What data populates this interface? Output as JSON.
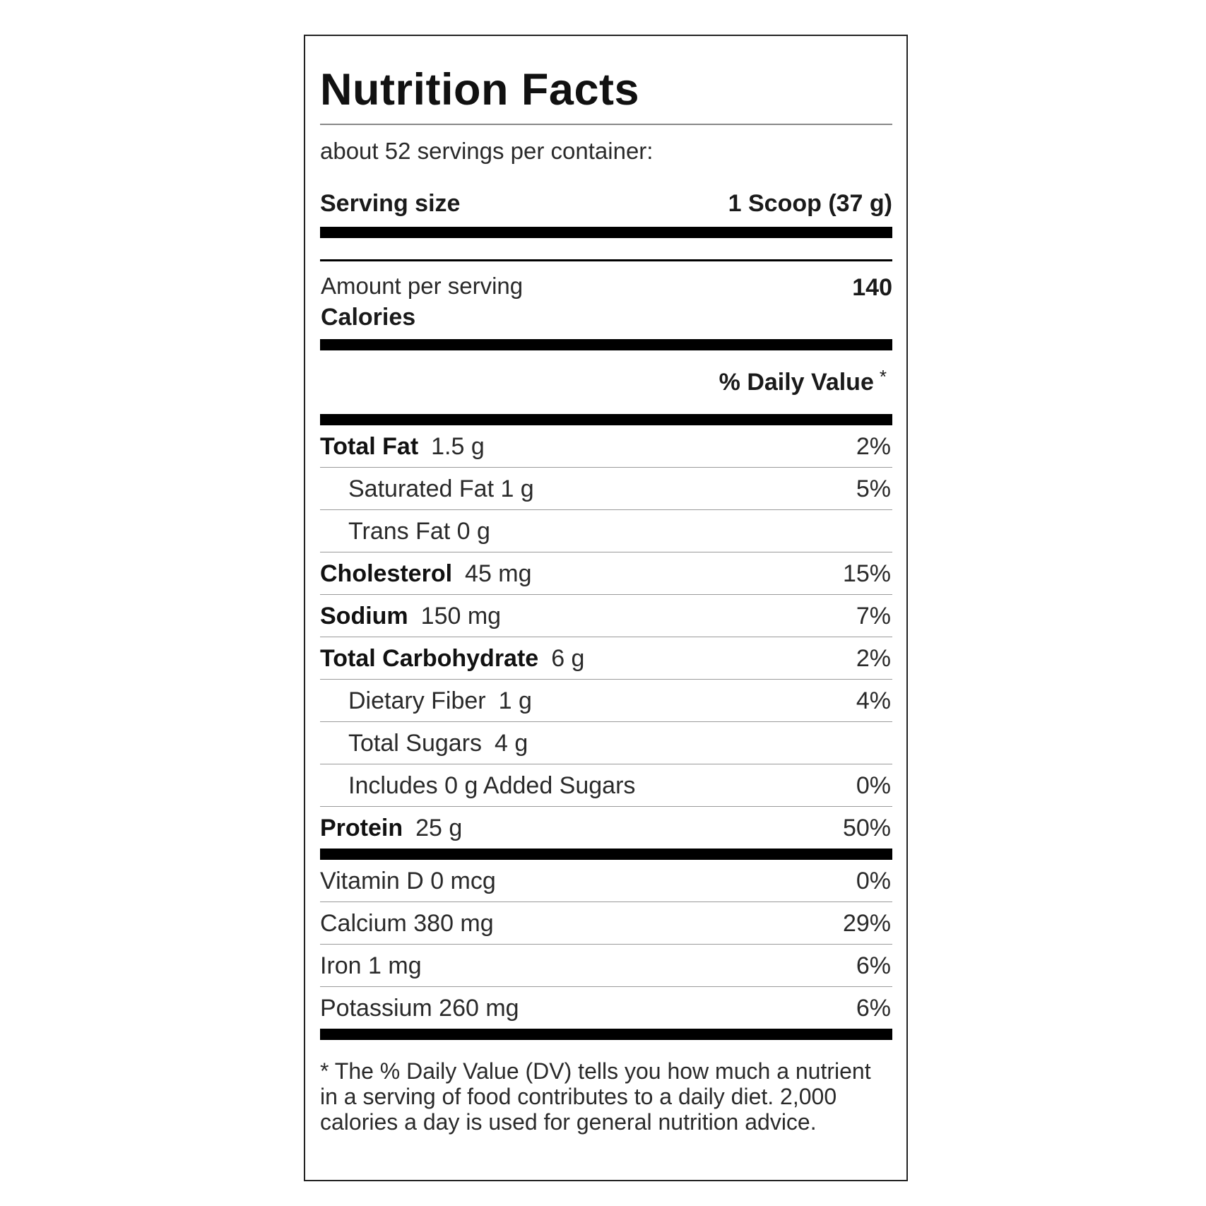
{
  "label": {
    "title": "Nutrition Facts",
    "servings_per_container": "about 52 servings per container:",
    "serving_size_label": "Serving size",
    "serving_size_value": "1 Scoop (37 g)",
    "amount_per_serving": "Amount per serving",
    "calories_label": "Calories",
    "calories_value": "140",
    "daily_value_header": "% Daily Value",
    "daily_value_star": "*",
    "nutrients": [
      {
        "name": "Total Fat",
        "amount": "1.5 g",
        "dv": "2%"
      },
      {
        "name": "Saturated Fat 1 g",
        "amount": "",
        "dv": "5%"
      },
      {
        "name": "Trans Fat 0 g",
        "amount": "",
        "dv": ""
      },
      {
        "name": "Cholesterol",
        "amount": "45 mg",
        "dv": "15%"
      },
      {
        "name": "Sodium",
        "amount": "150 mg",
        "dv": "7%"
      },
      {
        "name": "Total Carbohydrate",
        "amount": "6 g",
        "dv": "2%"
      },
      {
        "name": "Dietary Fiber",
        "amount": "1 g",
        "dv": "4%"
      },
      {
        "name": "Total Sugars",
        "amount": "4 g",
        "dv": ""
      },
      {
        "name": "Includes 0 g Added Sugars",
        "amount": "",
        "dv": "0%"
      },
      {
        "name": "Protein",
        "amount": "25 g",
        "dv": "50%"
      }
    ],
    "vitamins": [
      {
        "name": "Vitamin D 0 mcg",
        "dv": "0%"
      },
      {
        "name": "Calcium 380 mg",
        "dv": "29%"
      },
      {
        "name": "Iron 1 mg",
        "dv": "6%"
      },
      {
        "name": "Potassium 260 mg",
        "dv": "6%"
      }
    ],
    "footnote": "* The % Daily Value (DV) tells you how much a nutrient in a serving of food contributes to a daily diet. 2,000 calories a day is used for general nutrition advice."
  }
}
